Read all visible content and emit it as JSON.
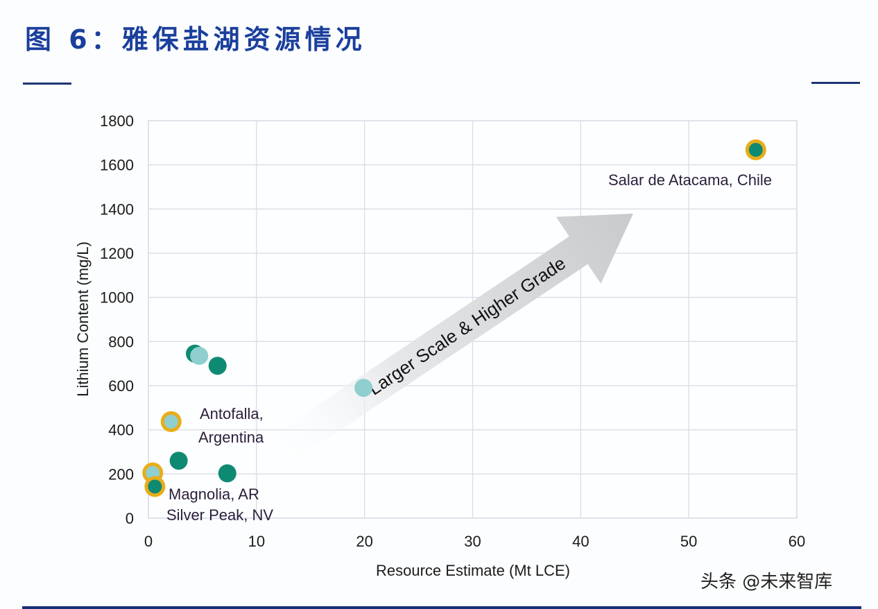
{
  "header": {
    "title": "图 6：雅保盐湖资源情况"
  },
  "watermark": "头条 @未来智库",
  "colors": {
    "title": "#1a3f9c",
    "rule": "#1b3475",
    "teal": "#0f8a72",
    "light_teal": "#8fcfcf",
    "ring": "#e8ad1a",
    "grid": "#d8dce6",
    "arrow": "#cfd0d2"
  },
  "chart_data": {
    "type": "scatter",
    "title": "",
    "xlabel": "Resource Estimate (Mt LCE)",
    "ylabel": "Lithium Content (mg/L)",
    "xlim": [
      0,
      60
    ],
    "ylim": [
      0,
      1800
    ],
    "xticks": [
      0,
      10,
      20,
      30,
      40,
      50,
      60
    ],
    "yticks": [
      0,
      200,
      400,
      600,
      800,
      1000,
      1200,
      1400,
      1600,
      1800
    ],
    "grid": true,
    "points": [
      {
        "x": 56.2,
        "y": 1668,
        "style": "ring-teal",
        "label": "Salar de Atacama, Chile"
      },
      {
        "x": 4.3,
        "y": 745,
        "style": "teal"
      },
      {
        "x": 4.7,
        "y": 735,
        "style": "light-teal"
      },
      {
        "x": 6.4,
        "y": 690,
        "style": "teal"
      },
      {
        "x": 2.1,
        "y": 437,
        "style": "ring-light",
        "label": "Antofalla, Argentina"
      },
      {
        "x": 2.8,
        "y": 260,
        "style": "teal"
      },
      {
        "x": 7.3,
        "y": 203,
        "style": "teal"
      },
      {
        "x": 0.4,
        "y": 205,
        "style": "ring-light",
        "label": "Magnolia, AR"
      },
      {
        "x": 0.6,
        "y": 143,
        "style": "ring-teal",
        "label": "Silver Peak, NV"
      },
      {
        "x": 19.9,
        "y": 590,
        "style": "light-teal"
      }
    ],
    "annotations": [
      {
        "text": "Salar de Atacama, Chile"
      },
      {
        "text": "Antofalla,"
      },
      {
        "text": "Argentina"
      },
      {
        "text": "Magnolia, AR"
      },
      {
        "text": "Silver Peak, NV"
      },
      {
        "text": "Larger Scale & Higher Grade",
        "type": "arrow"
      }
    ]
  }
}
